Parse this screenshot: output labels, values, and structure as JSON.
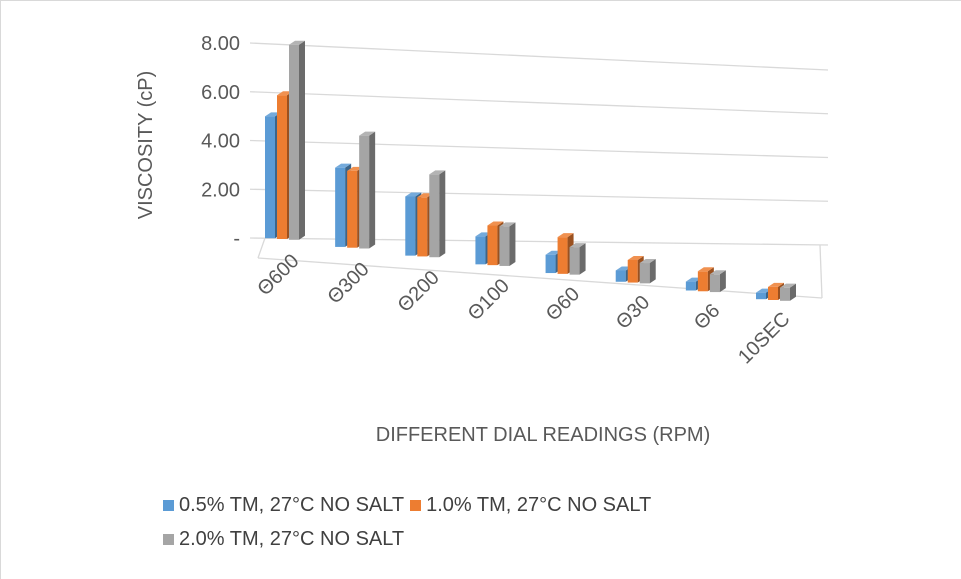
{
  "chart_data": {
    "type": "bar",
    "categories": [
      "Θ600",
      "Θ300",
      "Θ200",
      "Θ100",
      "Θ60",
      "Θ30",
      "Θ6",
      "10SEC"
    ],
    "series": [
      {
        "name": "0.5% TM, 27°C NO SALT",
        "color": "#5b9bd5",
        "values": [
          5.0,
          3.3,
          2.5,
          1.2,
          0.8,
          0.5,
          0.4,
          0.3
        ]
      },
      {
        "name": "1.0% TM, 27°C NO SALT",
        "color": "#ed7d31",
        "values": [
          5.9,
          3.2,
          2.5,
          1.7,
          1.6,
          1.0,
          0.9,
          0.6
        ]
      },
      {
        "name": "2.0% TM, 27°C NO SALT",
        "color": "#a5a5a5",
        "values": [
          8.0,
          4.7,
          3.5,
          1.7,
          1.2,
          0.9,
          0.8,
          0.6
        ]
      }
    ],
    "xlabel": "DIFFERENT DIAL READINGS (RPM)",
    "ylabel": "VISCOSITY (cP)",
    "yticks": [
      "-",
      "2.00",
      "4.00",
      "6.00",
      "8.00"
    ],
    "ylim": [
      0,
      8
    ],
    "grid": true,
    "legend_position": "bottom",
    "style": "3d-clustered-column"
  }
}
